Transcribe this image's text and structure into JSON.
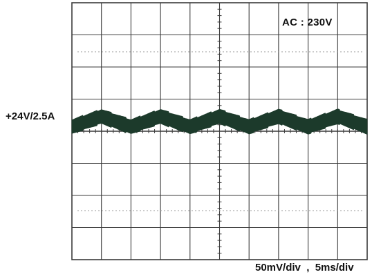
{
  "chart_data": {
    "type": "line",
    "title": "",
    "xlabel": "",
    "ylabel": "",
    "channel_label": "+24V/2.5A",
    "input_label": "AC : 230V",
    "scale_label": "50mV/div  ,  5ms/div",
    "grid": true,
    "grid_divisions": {
      "x": 10,
      "y": 8
    },
    "xlim": [
      0,
      50
    ],
    "ylim": [
      -200,
      200
    ],
    "x_unit": "ms",
    "y_unit": "mV",
    "series": [
      {
        "ripple_period_ms": 10,
        "ripple_pp_mv": 16,
        "noise_band_mv": 22,
        "offset_mv": 15,
        "color": "#1c3a2b"
      }
    ]
  }
}
